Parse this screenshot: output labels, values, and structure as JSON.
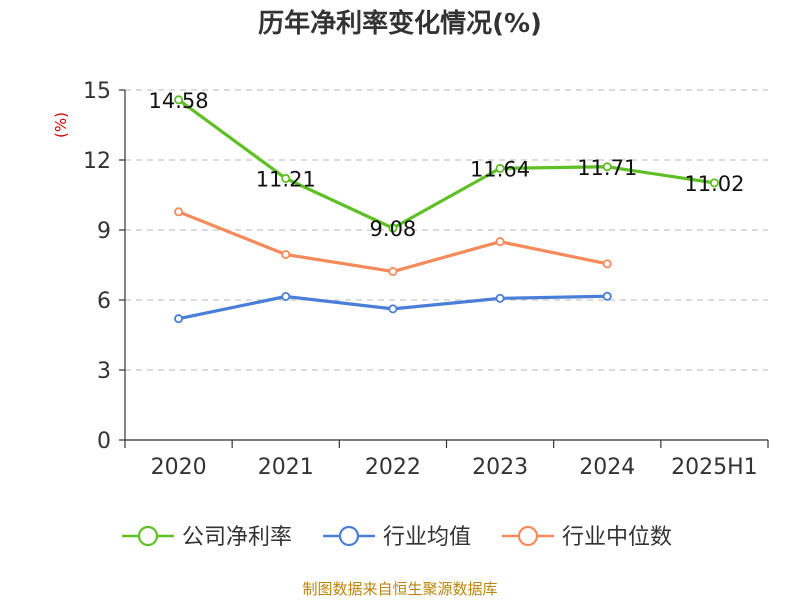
{
  "chart_data": {
    "type": "line",
    "title": "历年净利率变化情况(%)",
    "ylabel": "(%)",
    "xlabel": "",
    "categories": [
      "2020",
      "2021",
      "2022",
      "2023",
      "2024",
      "2025H1"
    ],
    "ylim": [
      0,
      15
    ],
    "yticks": [
      0,
      3,
      6,
      9,
      12,
      15
    ],
    "grid": true,
    "legend_position": "bottom",
    "series": [
      {
        "name": "公司净利率",
        "color": "#5ec024",
        "values": [
          14.58,
          11.21,
          9.08,
          11.64,
          11.71,
          11.02
        ],
        "labels": [
          "14.58",
          "11.21",
          "9.08",
          "11.64",
          "11.71",
          "11.02"
        ]
      },
      {
        "name": "行业均值",
        "color": "#4a7fd8",
        "values": [
          5.2,
          6.15,
          5.62,
          6.07,
          6.16,
          null
        ]
      },
      {
        "name": "行业中位数",
        "color": "#f58a5a",
        "values": [
          9.78,
          7.95,
          7.22,
          8.5,
          7.55,
          null
        ]
      }
    ]
  },
  "source": "制图数据来自恒生聚源数据库"
}
